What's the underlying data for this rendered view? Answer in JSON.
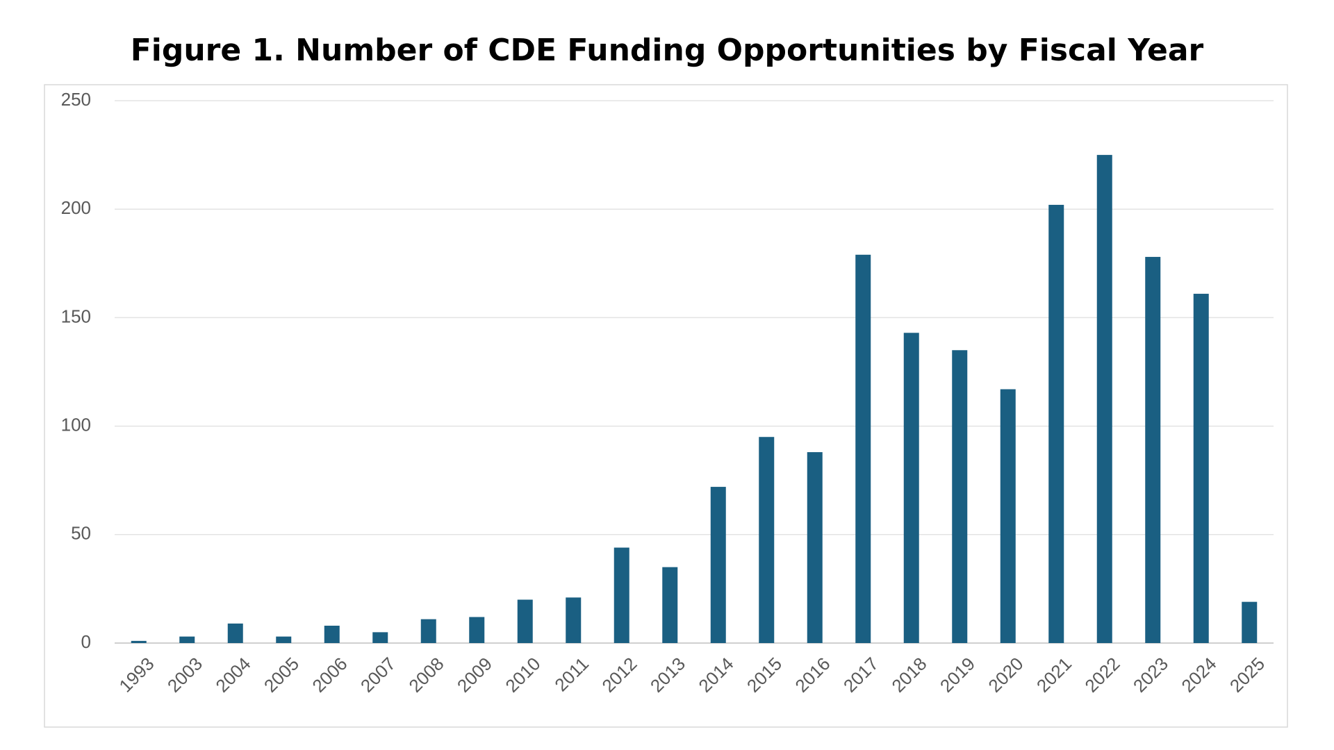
{
  "chart_data": {
    "type": "bar",
    "title": "Figure 1. Number of CDE Funding Opportunities by Fiscal Year",
    "categories": [
      "1993",
      "2003",
      "2004",
      "2005",
      "2006",
      "2007",
      "2008",
      "2009",
      "2010",
      "2011",
      "2012",
      "2013",
      "2014",
      "2015",
      "2016",
      "2017",
      "2018",
      "2019",
      "2020",
      "2021",
      "2022",
      "2023",
      "2024",
      "2025"
    ],
    "values": [
      1,
      3,
      9,
      3,
      8,
      5,
      11,
      12,
      20,
      21,
      44,
      35,
      72,
      95,
      88,
      179,
      143,
      135,
      117,
      202,
      225,
      178,
      161,
      19
    ],
    "color": "#1a5f82",
    "ylim": [
      0,
      250
    ],
    "yticks": [
      0,
      50,
      100,
      150,
      200,
      250
    ],
    "grid": true
  }
}
